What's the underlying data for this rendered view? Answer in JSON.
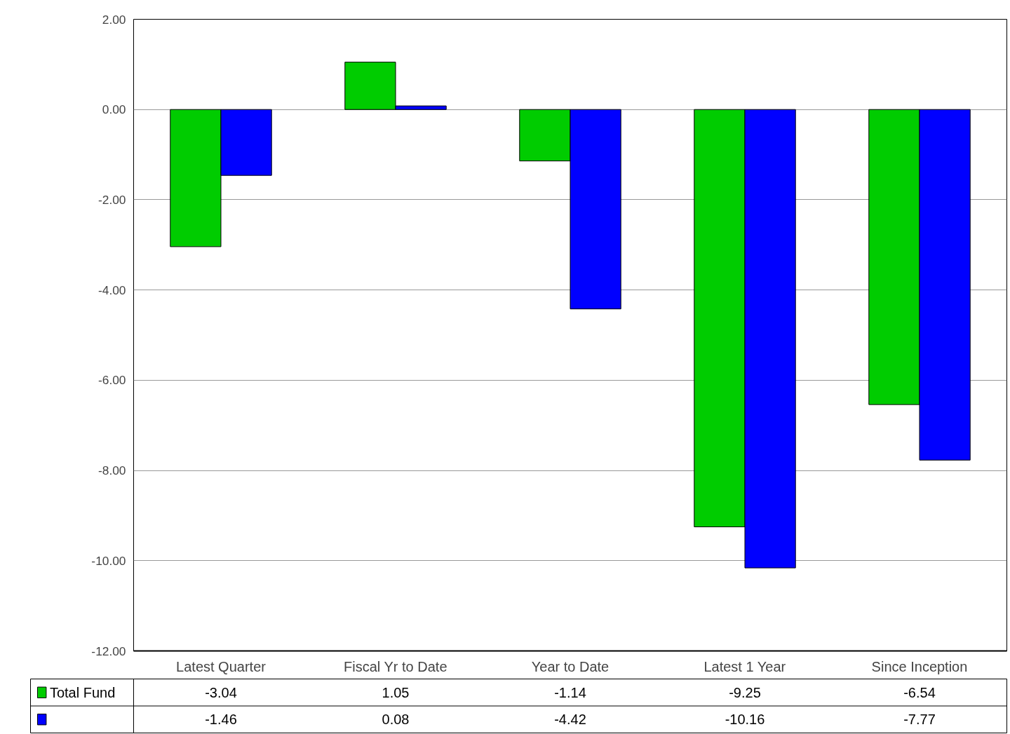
{
  "chart_data": {
    "type": "bar",
    "categories": [
      "Latest Quarter",
      "Fiscal Yr to Date",
      "Year to Date",
      "Latest 1 Year",
      "Since Inception"
    ],
    "series": [
      {
        "name": "Total Fund",
        "color": "#00cc00",
        "values": [
          -3.04,
          1.05,
          -1.14,
          -9.25,
          -6.54
        ]
      },
      {
        "color": "#0000ff",
        "values": [
          -1.46,
          0.08,
          -4.42,
          -10.16,
          -7.77
        ]
      }
    ],
    "ylim": [
      -12,
      2
    ],
    "yticks": [
      {
        "value": 2,
        "label": "2.00"
      },
      {
        "value": 0,
        "label": "0.00"
      },
      {
        "value": -2,
        "label": "-2.00"
      },
      {
        "value": -4,
        "label": "-4.00"
      },
      {
        "value": -6,
        "label": "-6.00"
      },
      {
        "value": -8,
        "label": "-8.00"
      },
      {
        "value": -10,
        "label": "-10.00"
      },
      {
        "value": -12,
        "label": "-12.00"
      }
    ],
    "grid": "y",
    "legend": "bottom",
    "data_labels": true
  }
}
